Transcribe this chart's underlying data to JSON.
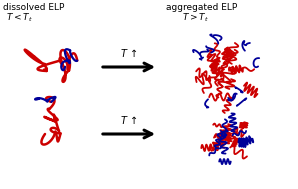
{
  "title_left": "dissolved ELP",
  "subtitle_left": "$T < T_t$",
  "title_right": "aggregated ELP",
  "subtitle_right": "$T > T_t$",
  "arrow_label": "$T$ ↑",
  "red_color": "#cc0000",
  "blue_color": "#000099",
  "bg_color": "#ffffff",
  "figsize": [
    2.98,
    1.89
  ],
  "dpi": 100
}
